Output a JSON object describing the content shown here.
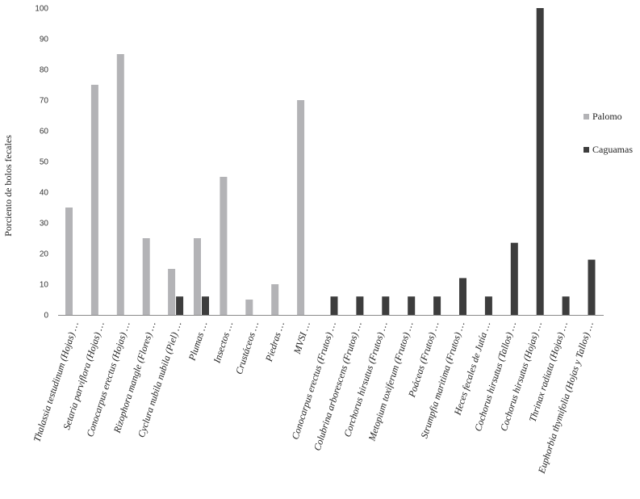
{
  "chart_data": {
    "type": "bar",
    "title": "",
    "xlabel": "",
    "ylabel": "Porciento de bolos fecales",
    "ylim": [
      0,
      100
    ],
    "yticks": [
      0,
      10,
      20,
      30,
      40,
      50,
      60,
      70,
      80,
      90,
      100
    ],
    "grid": false,
    "legend_position": "right",
    "categories": [
      "Thalassia testudinum (Hojas) …",
      "Setaria parviflora (Hojas) …",
      "Conocarpus erectus (Hojas) …",
      "Rizophora mangle (Flores) …",
      "Cyclura nubila nubila (Piel) …",
      "Plumas …",
      "Insectos …",
      "Crustáceos …",
      "Piedras …",
      "MVSI …",
      "Conocarpus erectus (Frutos) …",
      "Colubrina arborescens (Frutos) …",
      "Corchorus hirsutus (Frutos) …",
      "Metopium toxiferum (Frutos) …",
      "Poáceas (Frutos) …",
      "Strumpfia maritima (Frutos) …",
      "Heces fecales de Jutía …",
      "Cochorus hirsutus (Tallos) …",
      "Cochorus hirsutus (Hojas) …",
      "Thrinax radiata (Hojas) …",
      "Euphorbia thymifolia (Hojas y Tallos) …"
    ],
    "series": [
      {
        "name": "Palomo",
        "color": "#b3b3b6",
        "values": [
          35,
          75,
          85,
          25,
          15,
          25,
          45,
          5,
          10,
          70,
          null,
          null,
          null,
          null,
          null,
          null,
          null,
          null,
          null,
          null,
          null
        ]
      },
      {
        "name": "Caguamas",
        "color": "#3d3d3d",
        "values": [
          null,
          null,
          null,
          null,
          6,
          6,
          null,
          null,
          null,
          null,
          6,
          6,
          6,
          6,
          6,
          12,
          6,
          23.5,
          100,
          6,
          18
        ]
      }
    ]
  }
}
